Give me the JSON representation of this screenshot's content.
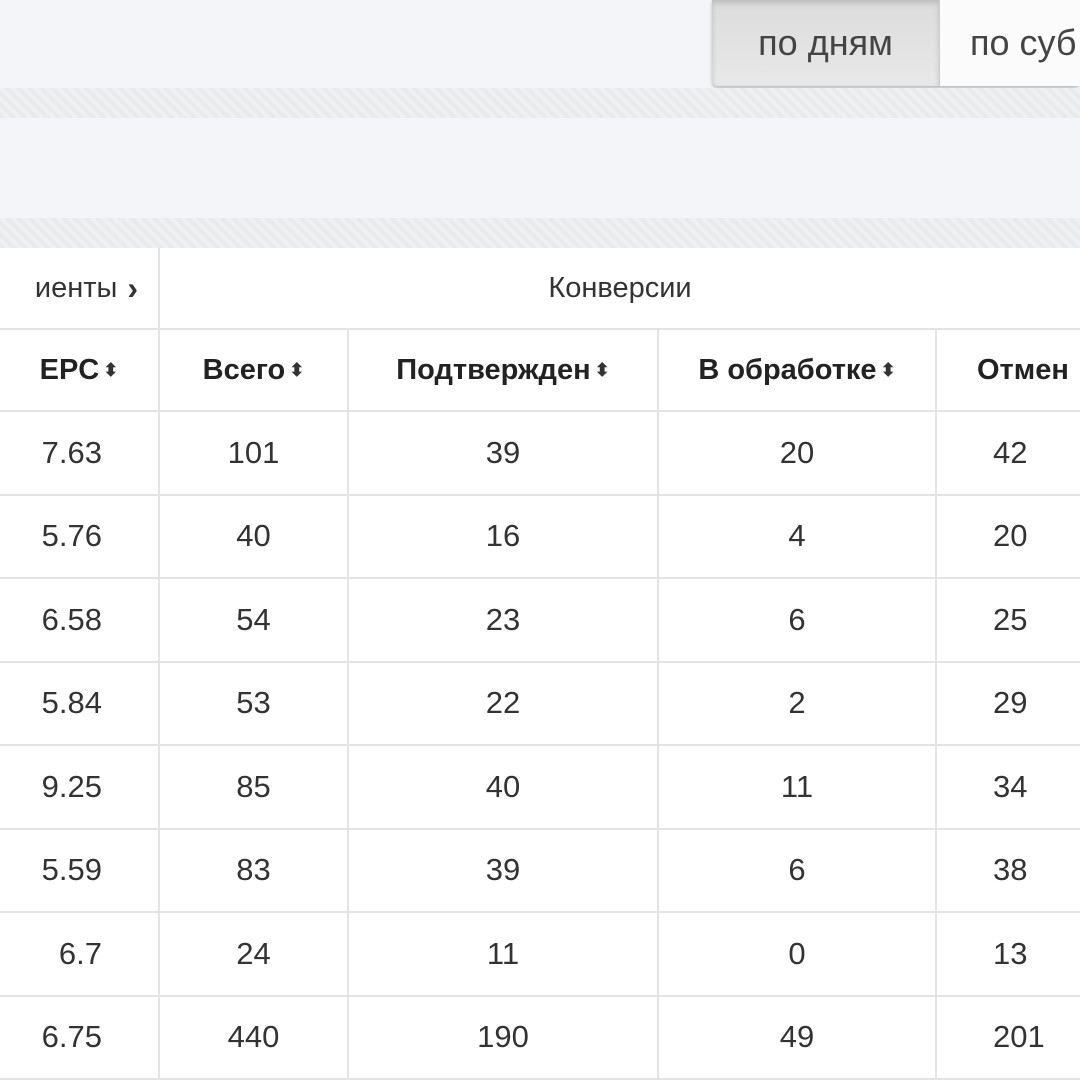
{
  "toolbar": {
    "buttons": [
      {
        "label": "по дням",
        "active": true
      },
      {
        "label": "по суб",
        "active": false
      }
    ]
  },
  "table": {
    "group_headers": {
      "first": "иенты",
      "conversions": "Конверсии"
    },
    "columns": [
      "EPC",
      "Всего",
      "Подтвержден",
      "В обработке",
      "Отмен"
    ],
    "rows": [
      [
        "7.63",
        "101",
        "39",
        "20",
        "42"
      ],
      [
        "5.76",
        "40",
        "16",
        "4",
        "20"
      ],
      [
        "6.58",
        "54",
        "23",
        "6",
        "25"
      ],
      [
        "5.84",
        "53",
        "22",
        "2",
        "29"
      ],
      [
        "9.25",
        "85",
        "40",
        "11",
        "34"
      ],
      [
        "5.59",
        "83",
        "39",
        "6",
        "38"
      ],
      [
        "6.7",
        "24",
        "11",
        "0",
        "13"
      ],
      [
        "6.75",
        "440",
        "190",
        "49",
        "201"
      ]
    ]
  }
}
